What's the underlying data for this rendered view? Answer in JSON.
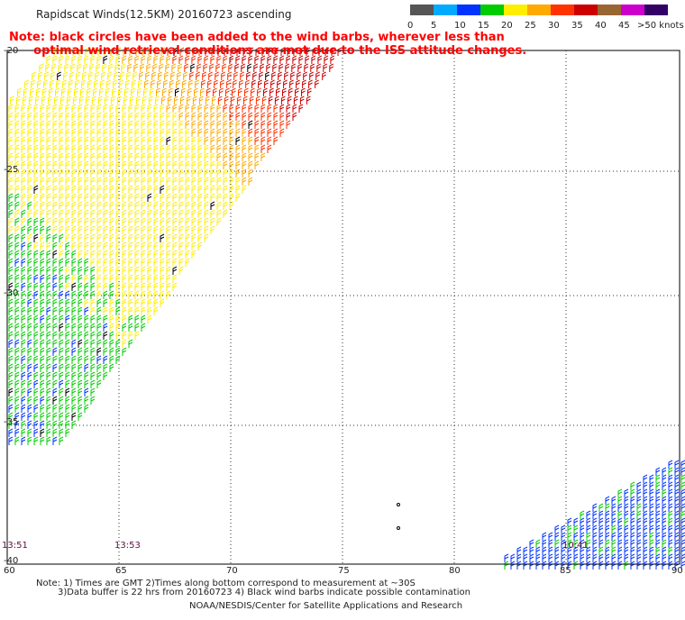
{
  "title": "Rapidscat Winds(12.5KM) 20160723 ascending",
  "note_line1": "Note: black circles have been added to the wind barbs, wherever less than",
  "note_line2": "optimal wind retrieval conditions are met due to the ISS attitude changes.",
  "colorbar": {
    "labels": [
      "0",
      "5",
      "10",
      "15",
      "20",
      "25",
      "30",
      "35",
      "40",
      "45",
      ">50 knots"
    ],
    "colors": [
      "#555555",
      "#00aaff",
      "#0033ff",
      "#00cc00",
      "#ffee00",
      "#ffaa00",
      "#ff3300",
      "#cc0000",
      "#996633",
      "#cc00cc",
      "#330066"
    ]
  },
  "axes": {
    "x_ticks": [
      "60",
      "65",
      "70",
      "75",
      "80",
      "85",
      "90"
    ],
    "y_ticks": [
      "-20",
      "-25",
      "-30",
      "-35",
      "-40"
    ]
  },
  "time_labels": [
    "13:51",
    "13:53",
    "10:41"
  ],
  "footer": {
    "line1": "Note: 1) Times are GMT 2)Times along bottom correspond to measurement at ~30S",
    "line2": "3)Data buffer is 22 hrs from 20160723 4) Black wind barbs indicate possible contamination",
    "line3": "NOAA/NESDIS/Center for Satellite Applications and Research"
  }
}
